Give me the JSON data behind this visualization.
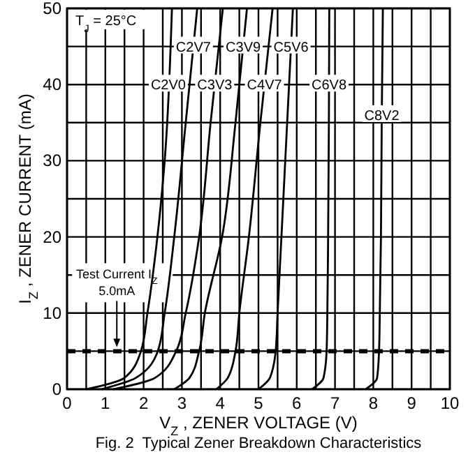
{
  "chart_data": {
    "type": "line",
    "title": "Fig. 2  Typical Zener Breakdown Characteristics",
    "xlabel": "V$_{Z}$, ZENER VOLTAGE (V)",
    "ylabel": "I$_{Z}$, ZENER CURRENT (mA)",
    "annotations": [
      "T$_{J}$ = 25°C"
    ],
    "xlim": [
      0,
      10
    ],
    "ylim": [
      0,
      50
    ],
    "xticks": [
      0,
      {
        "value": 0.5,
        "label": null
      },
      1,
      {
        "value": 1.5,
        "label": null
      },
      2,
      {
        "value": 2.5,
        "label": null
      },
      3,
      {
        "value": 3.5,
        "label": null
      },
      4,
      {
        "value": 4.5,
        "label": null
      },
      5,
      {
        "value": 5.5,
        "label": null
      },
      6,
      {
        "value": 6.5,
        "label": null
      },
      7,
      {
        "value": 7.5,
        "label": null
      },
      8,
      {
        "value": 8.5,
        "label": null
      },
      9,
      {
        "value": 9.5,
        "label": null
      },
      10
    ],
    "yticks": [
      0,
      {
        "value": 5,
        "label": null
      },
      10,
      {
        "value": 15,
        "label": null
      },
      20,
      {
        "value": 25,
        "label": null
      },
      30,
      {
        "value": 35,
        "label": null
      },
      40,
      {
        "value": 45,
        "label": null
      },
      50
    ],
    "grid": true,
    "legend": false,
    "line_style": "solid",
    "ref_lines": [
      {
        "axis": "y",
        "value": 5,
        "label": "Test Current I$_{Z}$ 5.0mA",
        "line_style": "dashed",
        "color": "#000000"
      }
    ],
    "series": [
      {
        "name": "C2V0",
        "color": "#000000",
        "x": [
          0.5,
          1.5,
          1.93,
          2.1,
          2.36,
          2.55,
          2.74
        ],
        "values": [
          0,
          1.5,
          5,
          10,
          20,
          30,
          50
        ]
      },
      {
        "name": "C2V7",
        "color": "#000000",
        "x": [
          0.9,
          1.8,
          2.37,
          2.55,
          2.8,
          3.1,
          3.4
        ],
        "values": [
          0,
          1.5,
          5,
          10,
          20,
          35,
          50
        ]
      },
      {
        "name": "C3V3",
        "color": "#000000",
        "x": [
          1.2,
          2.3,
          2.85,
          3.1,
          3.45,
          3.75,
          4.07
        ],
        "values": [
          0,
          1.5,
          5,
          10,
          20,
          35,
          50
        ]
      },
      {
        "name": "C3V9",
        "color": "#000000",
        "x": [
          2.8,
          3.2,
          3.45,
          3.6,
          4.05,
          4.4,
          4.7
        ],
        "values": [
          0,
          1.5,
          5,
          10,
          20,
          35,
          50
        ]
      },
      {
        "name": "C4V7",
        "color": "#000000",
        "x": [
          3.9,
          4.2,
          4.4,
          4.5,
          4.75,
          5.05,
          5.37
        ],
        "values": [
          0,
          1.5,
          5,
          10,
          20,
          35,
          50
        ]
      },
      {
        "name": "C5V6",
        "color": "#000000",
        "x": [
          5.0,
          5.3,
          5.45,
          5.5,
          5.6,
          5.75,
          5.9
        ],
        "values": [
          0,
          1.5,
          5,
          10,
          20,
          35,
          50
        ]
      },
      {
        "name": "C6V8",
        "color": "#000000",
        "x": [
          6.4,
          6.7,
          6.78,
          6.8,
          6.82,
          6.84,
          6.85
        ],
        "values": [
          0,
          1.5,
          5,
          10,
          20,
          35,
          50
        ]
      },
      {
        "name": "C8V2",
        "color": "#000000",
        "x": [
          7.8,
          8.1,
          8.15,
          8.17,
          8.2,
          8.22,
          8.25
        ],
        "values": [
          0,
          1.5,
          5,
          10,
          20,
          35,
          50
        ]
      }
    ]
  }
}
